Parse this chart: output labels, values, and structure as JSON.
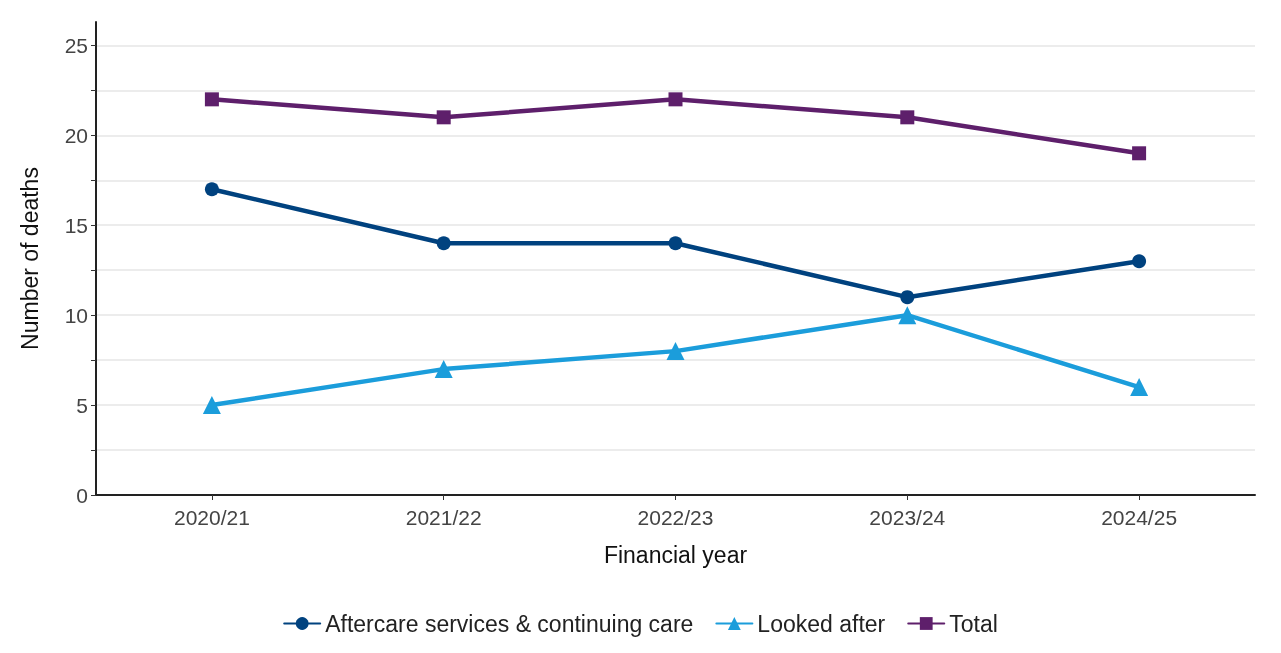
{
  "chart_data": {
    "type": "line",
    "xlabel": "Financial year",
    "ylabel": "Number of deaths",
    "categories": [
      "2020/21",
      "2021/22",
      "2022/23",
      "2023/24",
      "2024/25"
    ],
    "series": [
      {
        "name": "Aftercare services & continuing care",
        "color": "#00427f",
        "marker": "circle",
        "values": [
          17,
          14,
          14,
          11,
          13
        ]
      },
      {
        "name": "Looked after",
        "color": "#1b9ddb",
        "marker": "triangle",
        "values": [
          5,
          7,
          8,
          10,
          6
        ]
      },
      {
        "name": "Total",
        "color": "#5e1f6b",
        "marker": "square",
        "values": [
          22,
          21,
          22,
          21,
          19
        ]
      }
    ],
    "ylim": [
      0,
      26.3
    ],
    "yticks": [
      0,
      {
        "value": 2.5,
        "label": null
      },
      5,
      {
        "value": 7.5,
        "label": null
      },
      10,
      {
        "value": 12.5,
        "label": null
      },
      15,
      {
        "value": 17.5,
        "label": null
      },
      20,
      {
        "value": 22.5,
        "label": null
      },
      25
    ],
    "grid": "y",
    "legend": "bottom",
    "line_style": "solid"
  }
}
